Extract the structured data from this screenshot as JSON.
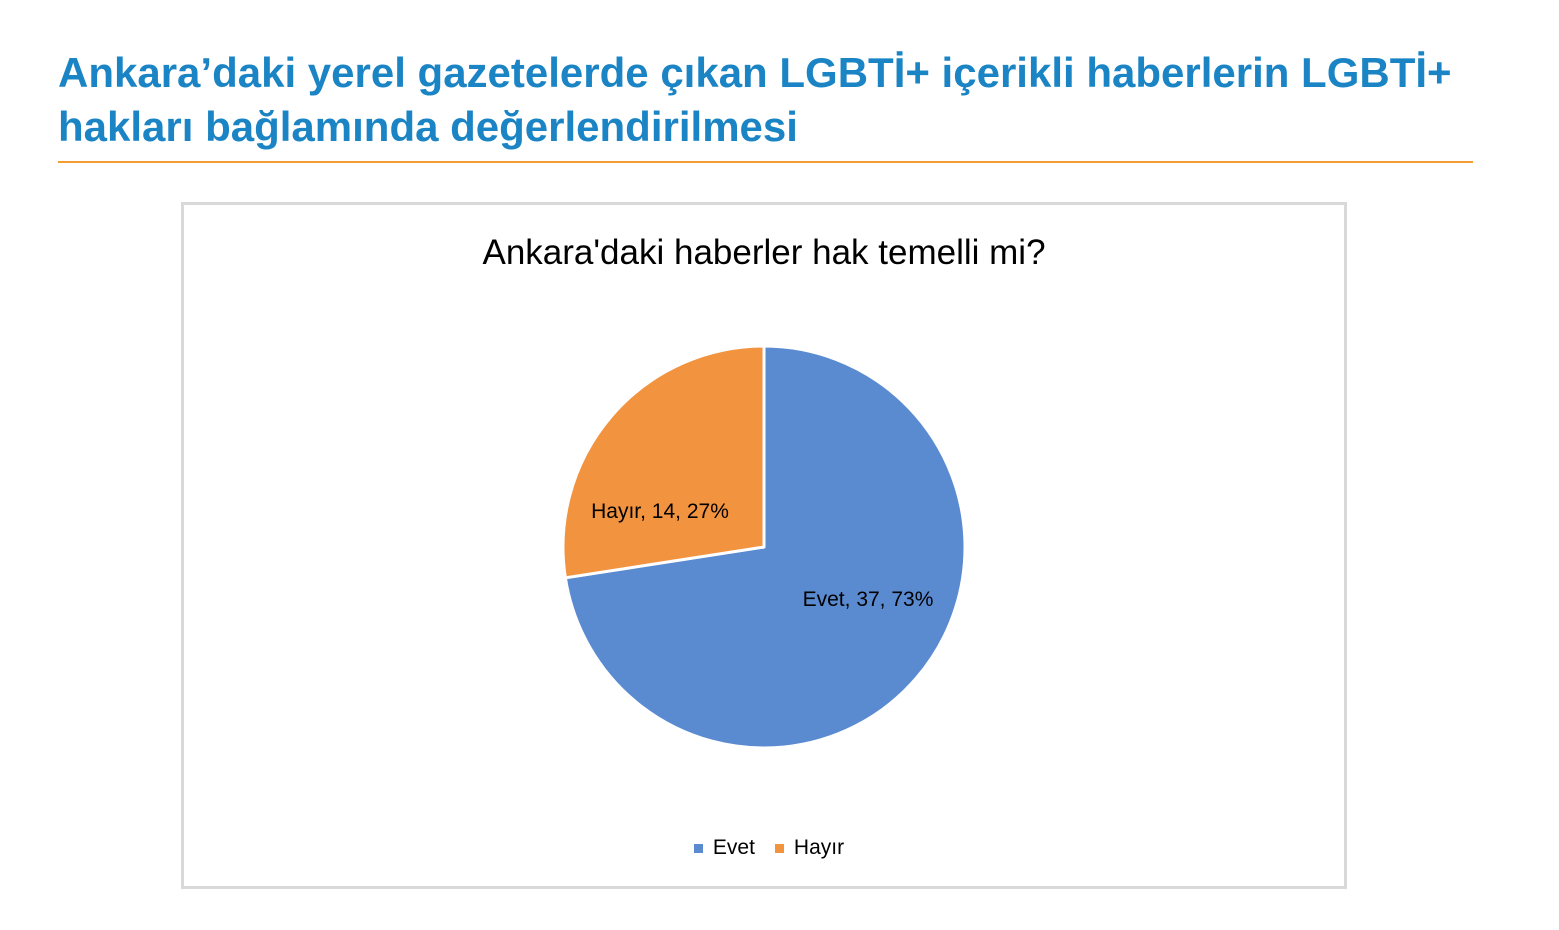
{
  "header": {
    "title_lines": [
      "Ankara’daki yerel gazetelerde çıkan LGBTİ+ içerikli haberlerin LGBTİ+",
      "hakları bağlamında değerlendirilmesi"
    ]
  },
  "colors": {
    "heading": "#1A84C4",
    "rule": "#F39C32",
    "frame": "#D9D9D9"
  },
  "chart_data": {
    "type": "pie",
    "title": "Ankara'daki haberler hak temelli mi?",
    "categories": [
      "Evet",
      "Hayır"
    ],
    "values": [
      37,
      14
    ],
    "data_labels": [
      "Evet, 37, 73%",
      "Hayır, 14, 27%"
    ],
    "colors": [
      "#5A8BD1",
      "#F2933F"
    ],
    "legend_position": "bottom"
  }
}
